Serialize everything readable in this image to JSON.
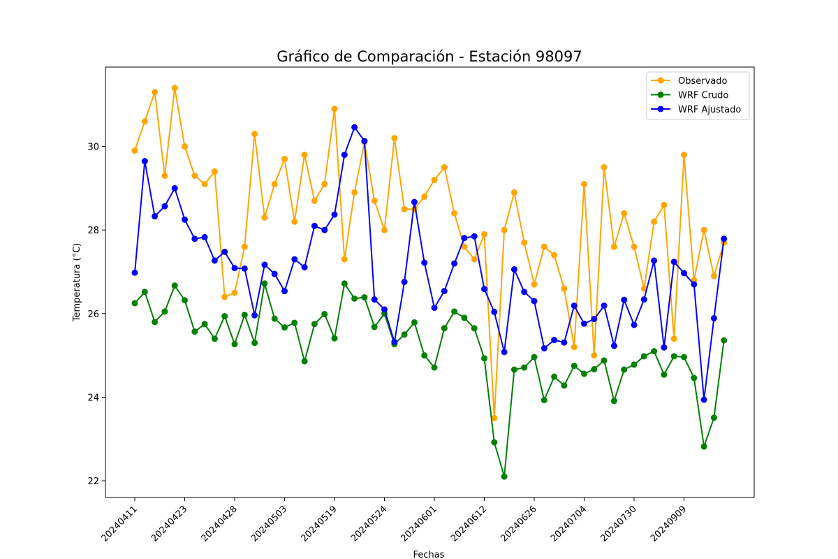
{
  "chart_data": {
    "type": "line",
    "title": "Gráfico de Comparación - Estación 98097",
    "xlabel": "Fechas",
    "ylabel": "Temperatura (°C)",
    "ylim": [
      21.6,
      31.9
    ],
    "yticks": [
      22,
      24,
      26,
      28,
      30
    ],
    "grid": false,
    "legend_position": "top-right",
    "x": [
      0,
      1,
      2,
      3,
      4,
      5,
      6,
      7,
      8,
      9,
      10,
      11,
      12,
      13,
      14,
      15,
      16,
      17,
      18,
      19,
      20,
      21,
      22,
      23,
      24,
      25,
      26,
      27,
      28,
      29,
      30,
      31,
      32,
      33,
      34,
      35,
      36,
      37,
      38,
      39,
      40,
      41,
      42,
      43,
      44,
      45,
      46,
      47,
      48,
      49,
      50,
      51,
      52,
      53,
      54,
      55,
      56,
      57,
      58,
      59
    ],
    "xticks": [
      {
        "index": 0,
        "label": "20240411"
      },
      {
        "index": 5,
        "label": "20240423"
      },
      {
        "index": 10,
        "label": "20240428"
      },
      {
        "index": 15,
        "label": "20240503"
      },
      {
        "index": 20,
        "label": "20240519"
      },
      {
        "index": 25,
        "label": "20240524"
      },
      {
        "index": 30,
        "label": "20240601"
      },
      {
        "index": 35,
        "label": "20240612"
      },
      {
        "index": 40,
        "label": "20240626"
      },
      {
        "index": 45,
        "label": "20240704"
      },
      {
        "index": 50,
        "label": "20240730"
      },
      {
        "index": 55,
        "label": "20240909"
      }
    ],
    "series": [
      {
        "name": "Observado",
        "color": "#ffa500",
        "values": [
          29.9,
          30.6,
          31.3,
          29.3,
          31.4,
          30.0,
          29.3,
          29.1,
          29.4,
          26.4,
          26.5,
          27.6,
          30.3,
          28.3,
          29.1,
          29.7,
          28.2,
          29.8,
          28.7,
          29.1,
          30.9,
          27.3,
          28.9,
          30.1,
          28.7,
          28.0,
          30.2,
          28.5,
          28.5,
          28.8,
          29.2,
          29.5,
          28.4,
          27.6,
          27.3,
          27.9,
          23.5,
          28.0,
          28.9,
          27.7,
          26.7,
          27.6,
          27.4,
          26.6,
          25.2,
          29.1,
          25.0,
          29.5,
          27.6,
          28.4,
          27.6,
          26.6,
          28.2,
          28.6,
          25.4,
          29.8,
          26.8,
          28.0,
          26.9,
          27.7
        ]
      },
      {
        "name": "WRF Crudo",
        "color": "#008000",
        "values": [
          26.25,
          26.52,
          25.8,
          26.05,
          26.67,
          26.32,
          25.57,
          25.75,
          25.4,
          25.94,
          25.27,
          25.97,
          25.3,
          26.72,
          25.88,
          25.67,
          25.78,
          24.86,
          25.75,
          25.99,
          25.41,
          26.72,
          26.36,
          26.39,
          25.68,
          26.0,
          25.27,
          25.5,
          25.79,
          25.0,
          24.71,
          25.65,
          26.05,
          25.9,
          25.65,
          24.93,
          22.92,
          22.1,
          24.66,
          24.71,
          24.96,
          23.93,
          24.49,
          24.28,
          24.75,
          24.56,
          24.67,
          24.88,
          23.91,
          24.66,
          24.78,
          24.98,
          25.1,
          24.54,
          24.98,
          24.96,
          24.46,
          22.82,
          23.51,
          25.36
        ]
      },
      {
        "name": "WRF Ajustado",
        "color": "#0000ff",
        "values": [
          26.98,
          29.65,
          28.33,
          28.57,
          29.0,
          28.25,
          27.79,
          27.83,
          27.27,
          27.48,
          27.09,
          27.08,
          25.96,
          27.17,
          26.95,
          26.54,
          27.3,
          27.11,
          28.1,
          28.0,
          28.37,
          29.8,
          30.46,
          30.13,
          26.34,
          26.1,
          25.32,
          26.76,
          28.67,
          27.22,
          26.14,
          26.54,
          27.2,
          27.81,
          27.85,
          26.59,
          26.04,
          25.08,
          27.06,
          26.52,
          26.3,
          25.17,
          25.37,
          25.31,
          26.19,
          25.76,
          25.87,
          26.19,
          25.23,
          26.33,
          25.73,
          26.34,
          27.27,
          25.19,
          27.24,
          26.97,
          26.7,
          23.94,
          25.89,
          27.79
        ]
      }
    ]
  }
}
